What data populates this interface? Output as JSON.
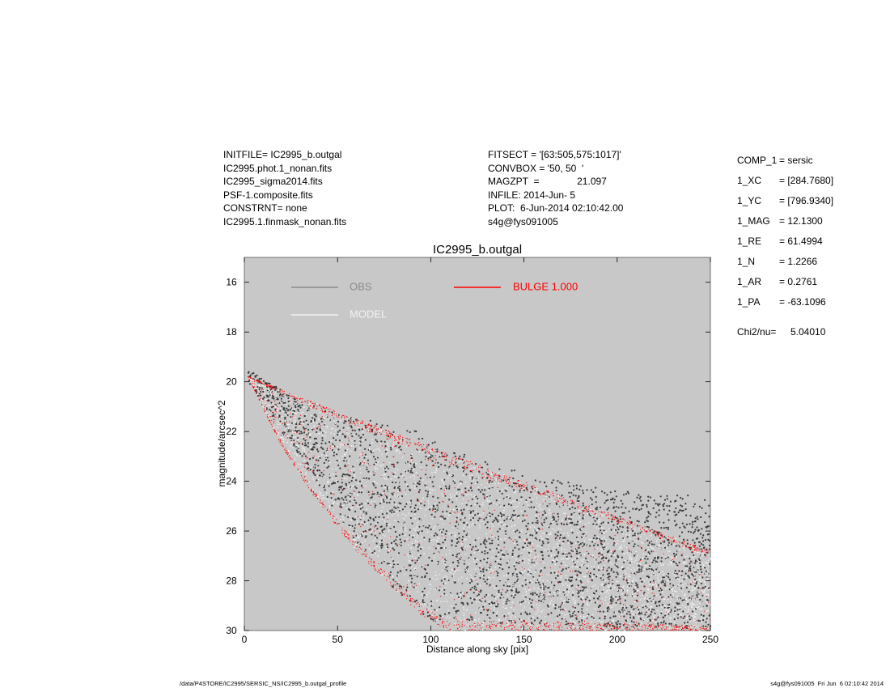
{
  "header_left": [
    "INITFILE= IC2995_b.outgal",
    "IC2995.phot.1_nonan.fits",
    "IC2995_sigma2014.fits",
    "PSF-1.composite.fits",
    "CONSTRNT= none",
    "IC2995.1.finmask_nonan.fits"
  ],
  "header_mid": [
    "FITSECT = '[63:505,575:1017]'",
    "CONVBOX = '50, 50  '",
    "MAGZPT  =              21.097",
    "INFILE: 2014-Jun- 5",
    "PLOT:  6-Jun-2014 02:10:42.00",
    "s4g@fys091005"
  ],
  "params": [
    {
      "key": "COMP_1",
      "value": "= sersic"
    },
    {
      "key": "1_XC",
      "value": "= [284.7680]"
    },
    {
      "key": "1_YC",
      "value": "= [796.9340]"
    },
    {
      "key": "1_MAG",
      "value": "= 12.1300"
    },
    {
      "key": "1_RE",
      "value": "= 61.4994"
    },
    {
      "key": "1_N",
      "value": "= 1.2266"
    },
    {
      "key": "1_AR",
      "value": "= 0.2761"
    },
    {
      "key": "1_PA",
      "value": "= -63.1096"
    },
    {
      "key": "Chi2/nu=",
      "value": "5.04010"
    }
  ],
  "footer": {
    "left": "/data/P4STORE/IC2995/SERSIC_NS/IC2995_b.outgal_profile",
    "right": "s4g@fys091005  Fri Jun  6 02:10:42 2014"
  },
  "colors": {
    "background": "#c8c8c8",
    "obs": "#3a3a3a",
    "model": "#f2f2f2",
    "bulge": "#ff0000",
    "obs_legend": "#8c8c8c"
  },
  "chart_data": {
    "type": "scatter",
    "title": "IC2995_b.outgal",
    "xlabel": "Distance along sky [pix]",
    "ylabel": "magnitude/arcsec^2",
    "xlim": [
      0,
      250
    ],
    "ylim": [
      30,
      15
    ],
    "y_inverted": true,
    "xticks": [
      0,
      50,
      100,
      150,
      200,
      250
    ],
    "yticks": [
      16,
      18,
      20,
      22,
      24,
      26,
      28,
      30
    ],
    "grid": false,
    "legend": [
      {
        "label": "OBS",
        "style": "obs"
      },
      {
        "label": "MODEL",
        "style": "model"
      },
      {
        "label": "BULGE  1.000",
        "style": "bulge"
      }
    ],
    "series": [
      {
        "name": "OBS",
        "envelope": {
          "upper": [
            [
              2,
              19.5
            ],
            [
              30,
              20.8
            ],
            [
              60,
              21.4
            ],
            [
              90,
              21.9
            ],
            [
              110,
              22.6
            ],
            [
              150,
              23.7
            ],
            [
              200,
              24.4
            ],
            [
              250,
              24.6
            ]
          ],
          "lower": [
            [
              2,
              20.0
            ],
            [
              20,
              22.0
            ],
            [
              40,
              24.2
            ],
            [
              60,
              26.5
            ],
            [
              80,
              28.3
            ],
            [
              100,
              29.6
            ],
            [
              250,
              30.0
            ]
          ]
        }
      },
      {
        "name": "MODEL",
        "envelope": {
          "upper": [
            [
              2,
              19.8
            ],
            [
              50,
              21.2
            ],
            [
              100,
              22.6
            ],
            [
              150,
              24.0
            ],
            [
              200,
              25.4
            ],
            [
              250,
              26.8
            ]
          ],
          "lower": [
            [
              2,
              19.8
            ],
            [
              20,
              22.6
            ],
            [
              40,
              24.9
            ],
            [
              60,
              26.8
            ],
            [
              80,
              28.3
            ],
            [
              95,
              29.4
            ],
            [
              108,
              30.0
            ],
            [
              250,
              30.0
            ]
          ]
        }
      },
      {
        "name": "BULGE  1.000",
        "envelope": {
          "upper": [
            [
              2,
              19.8
            ],
            [
              50,
              21.2
            ],
            [
              100,
              22.6
            ],
            [
              150,
              24.0
            ],
            [
              200,
              25.4
            ],
            [
              250,
              26.8
            ]
          ],
          "lower": [
            [
              2,
              19.8
            ],
            [
              20,
              22.6
            ],
            [
              40,
              24.9
            ],
            [
              60,
              26.8
            ],
            [
              80,
              28.3
            ],
            [
              95,
              29.4
            ],
            [
              108,
              30.0
            ],
            [
              250,
              30.0
            ]
          ]
        }
      }
    ]
  }
}
